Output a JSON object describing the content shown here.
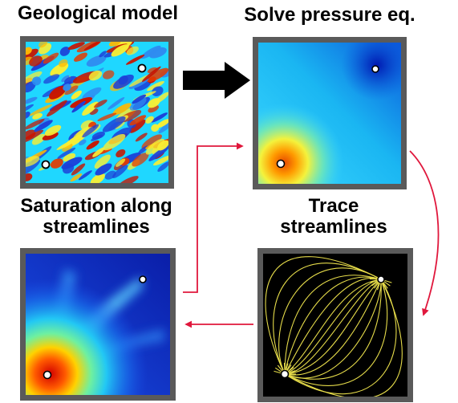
{
  "labels": {
    "geological_model": "Geological model",
    "solve_pressure": "Solve pressure eq.",
    "saturation_line1": "Saturation along",
    "saturation_line2": "streamlines",
    "trace_line1": "Trace",
    "trace_line2": "streamlines"
  },
  "colors": {
    "panel_frame": "#5a5a5a",
    "arrow_black": "#000000",
    "arrow_red": "#e0173c",
    "streamline": "#e6dc4a",
    "well": "#ffffff"
  }
}
